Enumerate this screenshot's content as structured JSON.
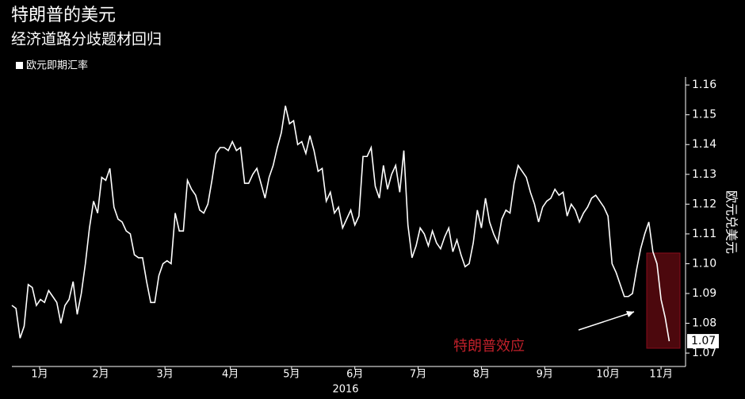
{
  "chart_data": {
    "type": "line",
    "title": "特朗普的美元",
    "subtitle": "经济道路分歧题材回归",
    "y_axis_label": "欧元兑美元",
    "x_axis_label": "2016",
    "annotation": "特朗普效应",
    "last_value_label": "1.07",
    "series": [
      {
        "name": "欧元即期汇率",
        "color": "#ffffff",
        "x": [
          0,
          2,
          4,
          6,
          8,
          10,
          12,
          14,
          16,
          18,
          20,
          22,
          24,
          26,
          28,
          30,
          32,
          34,
          36,
          38,
          40,
          42,
          44,
          46,
          48,
          50,
          52,
          54,
          56,
          58,
          60,
          62,
          64,
          66,
          68,
          70,
          72,
          74,
          76,
          78,
          80,
          82,
          84,
          86,
          88,
          90,
          92,
          94,
          96,
          98,
          100,
          102,
          104,
          106,
          108,
          110,
          112,
          114,
          116,
          118,
          120,
          122,
          124,
          126,
          128,
          130,
          132,
          134,
          136,
          138,
          140,
          142,
          144,
          146,
          148,
          150,
          152,
          154,
          156,
          158,
          160,
          162,
          164,
          166,
          168,
          170,
          172,
          174,
          176,
          178,
          180,
          182,
          184,
          186,
          188,
          190,
          192,
          194,
          196,
          198,
          200,
          202,
          204,
          206,
          208,
          210,
          212,
          214,
          216,
          218,
          220,
          222,
          224,
          226,
          228,
          230,
          232,
          234,
          236,
          238,
          240,
          242,
          244,
          246,
          248,
          250,
          252,
          254,
          256,
          258,
          260,
          262,
          264,
          266,
          268,
          270,
          272,
          274,
          276,
          278,
          280,
          282,
          284,
          286,
          288,
          290,
          292,
          294,
          296,
          298,
          300,
          302,
          304,
          306,
          308,
          310,
          312,
          314,
          316,
          318,
          320,
          322
        ],
        "values": [
          1.086,
          1.085,
          1.075,
          1.079,
          1.093,
          1.092,
          1.086,
          1.088,
          1.087,
          1.091,
          1.089,
          1.087,
          1.08,
          1.086,
          1.088,
          1.094,
          1.083,
          1.09,
          1.1,
          1.112,
          1.121,
          1.117,
          1.129,
          1.128,
          1.132,
          1.119,
          1.115,
          1.114,
          1.111,
          1.11,
          1.103,
          1.102,
          1.102,
          1.094,
          1.087,
          1.087,
          1.096,
          1.1,
          1.101,
          1.1,
          1.117,
          1.111,
          1.111,
          1.128,
          1.125,
          1.123,
          1.118,
          1.117,
          1.12,
          1.128,
          1.137,
          1.139,
          1.139,
          1.138,
          1.141,
          1.138,
          1.139,
          1.127,
          1.127,
          1.13,
          1.132,
          1.127,
          1.122,
          1.129,
          1.133,
          1.139,
          1.144,
          1.153,
          1.147,
          1.148,
          1.14,
          1.141,
          1.137,
          1.143,
          1.138,
          1.131,
          1.132,
          1.121,
          1.124,
          1.117,
          1.119,
          1.112,
          1.115,
          1.118,
          1.113,
          1.116,
          1.136,
          1.136,
          1.139,
          1.126,
          1.122,
          1.133,
          1.125,
          1.13,
          1.133,
          1.124,
          1.138,
          1.113,
          1.102,
          1.106,
          1.112,
          1.11,
          1.106,
          1.111,
          1.107,
          1.105,
          1.109,
          1.112,
          1.104,
          1.108,
          1.103,
          1.099,
          1.1,
          1.107,
          1.118,
          1.112,
          1.122,
          1.114,
          1.11,
          1.107,
          1.115,
          1.118,
          1.117,
          1.127,
          1.133,
          1.131,
          1.129,
          1.124,
          1.12,
          1.114,
          1.119,
          1.121,
          1.122,
          1.125,
          1.123,
          1.124,
          1.116,
          1.12,
          1.118,
          1.114,
          1.117,
          1.119,
          1.122,
          1.123,
          1.121,
          1.119,
          1.116,
          1.1,
          1.097,
          1.093,
          1.089,
          1.089,
          1.09,
          1.098,
          1.105,
          1.11,
          1.114,
          1.104,
          1.1,
          1.088,
          1.082,
          1.074
        ]
      }
    ],
    "xlim": [
      0,
      330
    ],
    "xticks": [
      {
        "value": 13.6,
        "label": "1月"
      },
      {
        "value": 43.5,
        "label": "2月"
      },
      {
        "value": 75,
        "label": "3月"
      },
      {
        "value": 107,
        "label": "4月"
      },
      {
        "value": 137,
        "label": "5月"
      },
      {
        "value": 168,
        "label": "6月"
      },
      {
        "value": 199,
        "label": "7月"
      },
      {
        "value": 230,
        "label": "8月"
      },
      {
        "value": 261,
        "label": "9月"
      },
      {
        "value": 292,
        "label": "10月"
      },
      {
        "value": 318,
        "label": "11月"
      }
    ],
    "ylim": [
      1.0655,
      1.1627
    ],
    "yticks": [
      1.07,
      1.08,
      1.09,
      {
        "value": 1.1,
        "label": "1.10"
      },
      1.11,
      1.12,
      1.13,
      1.14,
      1.15,
      1.16
    ]
  }
}
